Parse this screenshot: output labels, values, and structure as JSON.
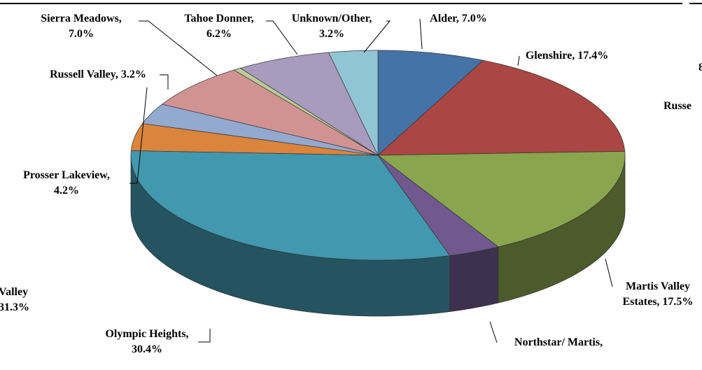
{
  "chart_data": {
    "type": "pie3d",
    "values": [
      7.0,
      17.4,
      17.5,
      3.4,
      30.4,
      4.2,
      3.2,
      7.0,
      0.5,
      6.2,
      3.2
    ],
    "value_labels": [
      "Alder, 7.0%",
      "Glenshire, 17.4%",
      "Martis Valley\nEstates, 17.5%",
      "Northstar/ Martis,",
      "Olympic Heights,\n30.4%",
      "Prosser Lakeview,\n4.2%",
      "Russell Valley, 3.2%",
      "Sierra Meadows,\n7.0%",
      null,
      "Tahoe Donner,\n6.2%",
      "Unknown/Other,\n3.2%"
    ],
    "colors": [
      "#4572a7",
      "#aa4643",
      "#89a54e",
      "#71588f",
      "#4198af",
      "#db843d",
      "#93a9cf",
      "#d19392",
      "#b9cd96",
      "#a99bbd",
      "#92c5d4"
    ]
  },
  "fragments": {
    "left": "Valley\n31.3%",
    "right_top": "8",
    "right_mid": "Russe"
  }
}
